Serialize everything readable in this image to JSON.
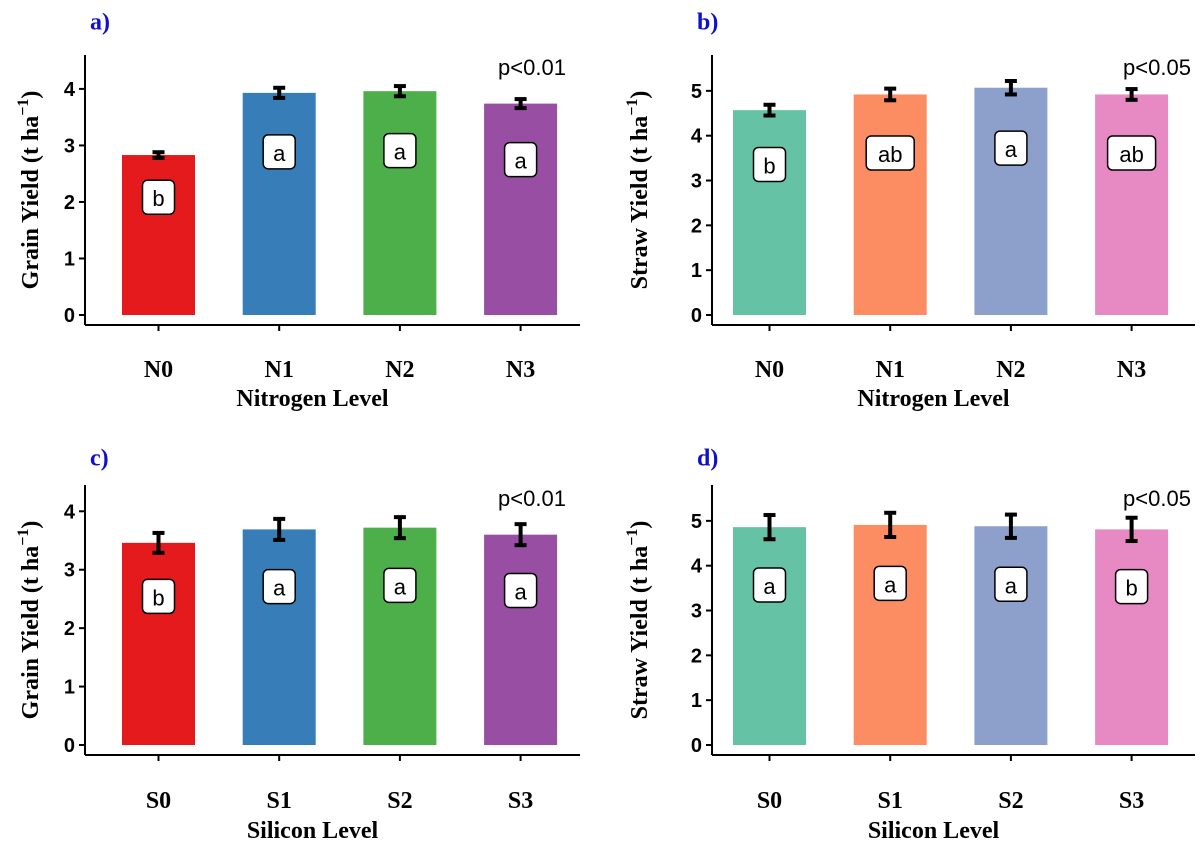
{
  "chart_data": [
    {
      "panel": "a)",
      "type": "bar",
      "categories": [
        "N0",
        "N1",
        "N2",
        "N3"
      ],
      "values": [
        2.83,
        3.93,
        3.96,
        3.74
      ],
      "errors": [
        0.05,
        0.09,
        0.09,
        0.08
      ],
      "letters": [
        "b",
        "a",
        "a",
        "a"
      ],
      "colors": [
        "#e41a1c",
        "#377eb8",
        "#4daf4a",
        "#984ea3"
      ],
      "xlabel": "Nitrogen Level",
      "ylabel_main": "Grain Yield (t ha",
      "ylabel_sup": "−1",
      "ylabel_end": ")",
      "yticks": [
        0,
        1,
        2,
        3,
        4
      ],
      "ylim": [
        0,
        4.6
      ],
      "pvalue": "p<0.01"
    },
    {
      "panel": "b)",
      "type": "bar",
      "categories": [
        "N0",
        "N1",
        "N2",
        "N3"
      ],
      "values": [
        4.57,
        4.92,
        5.07,
        4.92
      ],
      "errors": [
        0.12,
        0.13,
        0.15,
        0.12
      ],
      "letters": [
        "b",
        "ab",
        "a",
        "ab"
      ],
      "colors": [
        "#66c2a5",
        "#fc8d62",
        "#8da0cb",
        "#e78ac3"
      ],
      "xlabel": "Nitrogen Level",
      "ylabel_main": "Straw Yield (t ha",
      "ylabel_sup": "−1",
      "ylabel_end": ")",
      "yticks": [
        0,
        1,
        2,
        3,
        4,
        5
      ],
      "ylim": [
        0,
        5.8
      ],
      "pvalue": "p<0.05"
    },
    {
      "panel": "c)",
      "type": "bar",
      "categories": [
        "S0",
        "S1",
        "S2",
        "S3"
      ],
      "values": [
        3.46,
        3.69,
        3.72,
        3.6
      ],
      "errors": [
        0.17,
        0.18,
        0.18,
        0.18
      ],
      "letters": [
        "b",
        "a",
        "a",
        "a"
      ],
      "colors": [
        "#e41a1c",
        "#377eb8",
        "#4daf4a",
        "#984ea3"
      ],
      "xlabel": "Silicon Level",
      "ylabel_main": "Grain Yield (t ha",
      "ylabel_sup": "−1",
      "ylabel_end": ")",
      "yticks": [
        0,
        1,
        2,
        3,
        4
      ],
      "ylim": [
        0,
        4.45
      ],
      "pvalue": "p<0.01"
    },
    {
      "panel": "d)",
      "type": "bar",
      "categories": [
        "S0",
        "S1",
        "S2",
        "S3"
      ],
      "values": [
        4.86,
        4.91,
        4.88,
        4.81
      ],
      "errors": [
        0.27,
        0.27,
        0.26,
        0.26
      ],
      "letters": [
        "a",
        "a",
        "a",
        "b"
      ],
      "colors": [
        "#66c2a5",
        "#fc8d62",
        "#8da0cb",
        "#e78ac3"
      ],
      "xlabel": "Silicon Level",
      "ylabel_main": "Straw Yield (t ha",
      "ylabel_sup": "−1",
      "ylabel_end": ")",
      "yticks": [
        0,
        1,
        2,
        3,
        4,
        5
      ],
      "ylim": [
        0,
        5.8
      ],
      "pvalue": "p<0.05"
    }
  ]
}
